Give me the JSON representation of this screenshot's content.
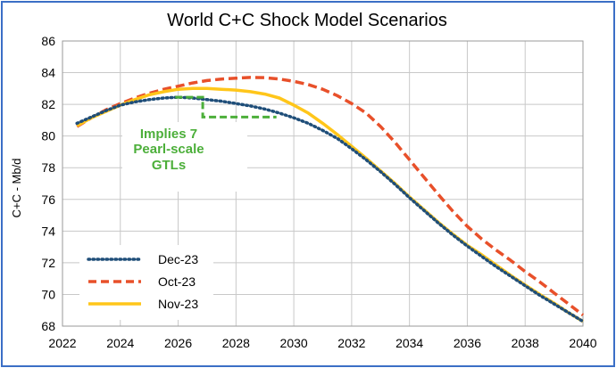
{
  "chart_data": {
    "type": "line",
    "title": "World C+C Shock Model Scenarios",
    "xlabel": "",
    "ylabel": "C+C - Mb/d",
    "xlim": [
      2022,
      2040
    ],
    "ylim": [
      68,
      86
    ],
    "xticks": [
      2022,
      2024,
      2026,
      2028,
      2030,
      2032,
      2034,
      2036,
      2038,
      2040
    ],
    "yticks": [
      68,
      70,
      72,
      74,
      76,
      78,
      80,
      82,
      84,
      86
    ],
    "grid": true,
    "legend_position": "bottom-left",
    "annotation": [
      "Implies 7",
      "Pearl-scale",
      "GTLs"
    ],
    "series": [
      {
        "name": "Dec-23",
        "color": "#1f4e79",
        "style": "dotted",
        "points": [
          [
            2022.5,
            80.8
          ],
          [
            2023,
            81.2
          ],
          [
            2023.5,
            81.6
          ],
          [
            2024,
            81.95
          ],
          [
            2024.5,
            82.15
          ],
          [
            2025,
            82.3
          ],
          [
            2025.5,
            82.4
          ],
          [
            2026,
            82.45
          ],
          [
            2026.5,
            82.4
          ],
          [
            2027,
            82.3
          ],
          [
            2027.5,
            82.2
          ],
          [
            2028,
            82.05
          ],
          [
            2028.5,
            81.9
          ],
          [
            2029,
            81.7
          ],
          [
            2029.5,
            81.45
          ],
          [
            2030,
            81.15
          ],
          [
            2030.5,
            80.8
          ],
          [
            2031,
            80.35
          ],
          [
            2031.5,
            79.85
          ],
          [
            2032,
            79.2
          ],
          [
            2032.5,
            78.5
          ],
          [
            2033,
            77.75
          ],
          [
            2033.5,
            76.95
          ],
          [
            2034,
            76.1
          ],
          [
            2034.5,
            75.3
          ],
          [
            2035,
            74.5
          ],
          [
            2035.5,
            73.75
          ],
          [
            2036,
            73.05
          ],
          [
            2036.5,
            72.4
          ],
          [
            2037,
            71.75
          ],
          [
            2037.5,
            71.15
          ],
          [
            2038,
            70.55
          ],
          [
            2038.5,
            69.95
          ],
          [
            2039,
            69.4
          ],
          [
            2039.5,
            68.85
          ],
          [
            2040,
            68.3
          ]
        ]
      },
      {
        "name": "Oct-23",
        "color": "#e8502a",
        "style": "dashed",
        "points": [
          [
            2022.5,
            80.6
          ],
          [
            2023,
            81.15
          ],
          [
            2023.5,
            81.65
          ],
          [
            2024,
            82.05
          ],
          [
            2024.5,
            82.4
          ],
          [
            2025,
            82.7
          ],
          [
            2025.5,
            82.95
          ],
          [
            2026,
            83.15
          ],
          [
            2026.5,
            83.35
          ],
          [
            2027,
            83.5
          ],
          [
            2027.5,
            83.6
          ],
          [
            2028,
            83.65
          ],
          [
            2028.5,
            83.7
          ],
          [
            2029,
            83.68
          ],
          [
            2029.5,
            83.6
          ],
          [
            2030,
            83.45
          ],
          [
            2030.5,
            83.25
          ],
          [
            2031,
            82.95
          ],
          [
            2031.5,
            82.55
          ],
          [
            2032,
            82.05
          ],
          [
            2032.5,
            81.45
          ],
          [
            2033,
            80.6
          ],
          [
            2033.5,
            79.6
          ],
          [
            2034,
            78.5
          ],
          [
            2034.5,
            77.4
          ],
          [
            2035,
            76.3
          ],
          [
            2035.5,
            75.25
          ],
          [
            2036,
            74.3
          ],
          [
            2036.5,
            73.5
          ],
          [
            2037,
            72.8
          ],
          [
            2037.5,
            72.15
          ],
          [
            2038,
            71.45
          ],
          [
            2038.5,
            70.8
          ],
          [
            2039,
            70.1
          ],
          [
            2039.5,
            69.4
          ],
          [
            2040,
            68.7
          ]
        ]
      },
      {
        "name": "Nov-23",
        "color": "#ffc61a",
        "style": "solid",
        "points": [
          [
            2022.5,
            80.65
          ],
          [
            2023,
            81.15
          ],
          [
            2023.5,
            81.55
          ],
          [
            2024,
            81.95
          ],
          [
            2024.5,
            82.3
          ],
          [
            2025,
            82.6
          ],
          [
            2025.5,
            82.8
          ],
          [
            2026,
            82.95
          ],
          [
            2026.5,
            83.0
          ],
          [
            2027,
            83.0
          ],
          [
            2027.5,
            82.95
          ],
          [
            2028,
            82.9
          ],
          [
            2028.5,
            82.8
          ],
          [
            2029,
            82.65
          ],
          [
            2029.5,
            82.4
          ],
          [
            2030,
            81.95
          ],
          [
            2030.5,
            81.45
          ],
          [
            2031,
            80.8
          ],
          [
            2031.5,
            80.1
          ],
          [
            2032,
            79.35
          ],
          [
            2032.5,
            78.6
          ],
          [
            2033,
            77.8
          ],
          [
            2033.5,
            77.0
          ],
          [
            2034,
            76.15
          ],
          [
            2034.5,
            75.35
          ],
          [
            2035,
            74.55
          ],
          [
            2035.5,
            73.8
          ],
          [
            2036,
            73.1
          ],
          [
            2036.5,
            72.5
          ],
          [
            2037,
            71.85
          ],
          [
            2037.5,
            71.2
          ],
          [
            2038,
            70.6
          ],
          [
            2038.5,
            70.0
          ],
          [
            2039,
            69.45
          ],
          [
            2039.5,
            68.85
          ],
          [
            2040,
            68.3
          ]
        ]
      }
    ]
  },
  "colors": {
    "frame": "#3b6fc6",
    "grid": "#c8c8c8",
    "annotation": "#4caf3a"
  }
}
